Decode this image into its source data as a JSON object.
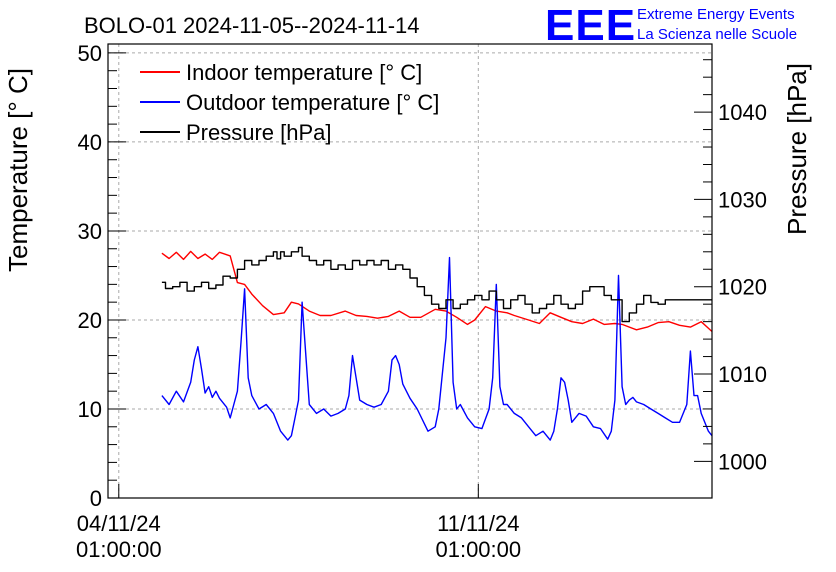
{
  "logo": {
    "text": "EEE",
    "line1": "Extreme Energy Events",
    "line2": "La Scienza nelle Scuole",
    "color": "#0000ff"
  },
  "chart_data": {
    "type": "line",
    "title": "BOLO-01 2024-11-05--2024-11-14",
    "ylabel": "Temperature [° C]",
    "y2label": "Pressure [hPa]",
    "ylim": [
      0,
      51
    ],
    "y2lim": [
      995.8,
      1047.8
    ],
    "yticks": [
      "0",
      "10",
      "20",
      "30",
      "40",
      "50"
    ],
    "y2ticks": [
      "1000",
      "1010",
      "1020",
      "1030",
      "1040"
    ],
    "xlim": [
      -0.3,
      16.5
    ],
    "xticks": [
      {
        "x": 0,
        "label1": "04/11/24",
        "label2": "01:00:00"
      },
      {
        "x": 10,
        "label1": "11/11/24",
        "label2": "01:00:00"
      }
    ],
    "grid": true,
    "legend_position": "top-left",
    "series": [
      {
        "name": "Indoor temperature [° C]",
        "axis": "left",
        "color": "#ff0000",
        "x": [
          1.2,
          1.4,
          1.6,
          1.8,
          2.0,
          2.2,
          2.4,
          2.6,
          2.8,
          3.1,
          3.3,
          3.5,
          3.7,
          4.0,
          4.3,
          4.6,
          4.8,
          5.0,
          5.3,
          5.6,
          5.9,
          6.3,
          6.6,
          6.9,
          7.2,
          7.5,
          7.8,
          8.1,
          8.4,
          8.8,
          9.1,
          9.4,
          9.7,
          9.9,
          10.2,
          10.5,
          10.8,
          11.0,
          11.4,
          11.7,
          12.0,
          12.3,
          12.6,
          12.9,
          13.2,
          13.5,
          13.8,
          14.0,
          14.4,
          14.7,
          15.0,
          15.3,
          15.6,
          15.9,
          16.2,
          16.5
        ],
        "y": [
          27.5,
          26.9,
          27.6,
          26.8,
          27.7,
          26.9,
          27.4,
          26.8,
          27.6,
          27.2,
          24.2,
          24.0,
          22.9,
          21.6,
          20.6,
          20.8,
          22.0,
          21.8,
          21.0,
          20.5,
          20.5,
          21.0,
          20.5,
          20.4,
          20.2,
          20.4,
          21.0,
          20.3,
          20.3,
          21.2,
          21.0,
          20.3,
          19.5,
          20.0,
          21.5,
          21.0,
          20.8,
          20.5,
          20.0,
          19.6,
          20.8,
          20.3,
          19.8,
          19.6,
          20.1,
          19.5,
          19.6,
          19.5,
          18.9,
          19.2,
          19.7,
          19.8,
          19.4,
          19.2,
          19.8,
          18.7
        ]
      },
      {
        "name": "Outdoor temperature [° C]",
        "axis": "left",
        "color": "#0000ff",
        "x": [
          1.2,
          1.4,
          1.6,
          1.8,
          2.0,
          2.1,
          2.2,
          2.3,
          2.4,
          2.5,
          2.6,
          2.7,
          2.8,
          3.0,
          3.1,
          3.2,
          3.3,
          3.4,
          3.5,
          3.6,
          3.7,
          3.9,
          4.1,
          4.3,
          4.5,
          4.7,
          4.8,
          4.9,
          5.0,
          5.1,
          5.3,
          5.5,
          5.7,
          5.9,
          6.1,
          6.3,
          6.4,
          6.5,
          6.6,
          6.7,
          6.9,
          7.1,
          7.3,
          7.5,
          7.6,
          7.7,
          7.8,
          7.9,
          8.1,
          8.3,
          8.6,
          8.8,
          8.9,
          9.1,
          9.2,
          9.3,
          9.4,
          9.5,
          9.7,
          9.9,
          10.1,
          10.3,
          10.4,
          10.5,
          10.6,
          10.7,
          10.8,
          11.0,
          11.2,
          11.4,
          11.6,
          11.8,
          12.0,
          12.1,
          12.2,
          12.3,
          12.4,
          12.5,
          12.6,
          12.8,
          13.0,
          13.2,
          13.4,
          13.6,
          13.7,
          13.8,
          13.9,
          14.0,
          14.1,
          14.2,
          14.3,
          14.4,
          14.6,
          14.8,
          15.0,
          15.2,
          15.4,
          15.6,
          15.8,
          15.9,
          16.0,
          16.1,
          16.2,
          16.4,
          16.5
        ],
        "y": [
          11.5,
          10.5,
          12.0,
          10.8,
          13.0,
          15.5,
          17.0,
          14.5,
          11.8,
          12.5,
          11.3,
          12.0,
          11.2,
          10.2,
          9.0,
          10.5,
          12.0,
          17.5,
          23.5,
          13.5,
          11.5,
          10.0,
          10.5,
          9.5,
          7.5,
          6.5,
          7.0,
          9.0,
          11.0,
          22.0,
          10.5,
          9.5,
          10.0,
          9.2,
          9.5,
          10.0,
          11.5,
          16.0,
          13.5,
          11.0,
          10.5,
          10.2,
          10.5,
          12.0,
          15.5,
          16.0,
          15.0,
          12.8,
          11.2,
          10.0,
          7.5,
          8.0,
          10.0,
          18.0,
          27.0,
          13.0,
          10.0,
          10.5,
          9.0,
          8.0,
          7.8,
          10.0,
          13.5,
          24.0,
          12.5,
          10.5,
          10.5,
          9.5,
          9.0,
          8.0,
          7.0,
          7.5,
          6.5,
          7.5,
          10.0,
          13.5,
          13.0,
          11.0,
          8.5,
          9.5,
          9.2,
          8.0,
          7.8,
          6.6,
          7.5,
          11.0,
          25.0,
          12.5,
          10.5,
          11.0,
          11.3,
          10.8,
          10.5,
          10.0,
          9.5,
          9.0,
          8.5,
          8.5,
          10.5,
          16.5,
          11.5,
          11.5,
          9.5,
          7.5,
          7.0
        ]
      },
      {
        "name": "Pressure [hPa]",
        "axis": "right",
        "color": "#000000",
        "x": [
          1.2,
          1.3,
          1.5,
          1.7,
          1.9,
          2.1,
          2.3,
          2.5,
          2.7,
          2.9,
          3.1,
          3.3,
          3.5,
          3.7,
          3.9,
          4.1,
          4.3,
          4.4,
          4.5,
          4.6,
          4.8,
          5.0,
          5.1,
          5.3,
          5.5,
          5.7,
          5.9,
          6.1,
          6.3,
          6.5,
          6.7,
          6.9,
          7.1,
          7.3,
          7.5,
          7.7,
          7.9,
          8.1,
          8.3,
          8.5,
          8.7,
          8.9,
          9.1,
          9.3,
          9.5,
          9.7,
          9.9,
          10.1,
          10.3,
          10.5,
          10.7,
          10.9,
          11.1,
          11.3,
          11.5,
          11.7,
          11.9,
          12.1,
          12.3,
          12.5,
          12.7,
          12.9,
          13.1,
          13.3,
          13.5,
          13.7,
          13.9,
          14.0,
          14.2,
          14.4,
          14.6,
          14.8,
          15.0,
          15.2,
          15.4,
          15.6,
          15.8,
          16.0,
          16.1,
          16.3,
          16.5
        ],
        "y": [
          1020.5,
          1019.8,
          1020.0,
          1020.5,
          1019.5,
          1020.0,
          1020.5,
          1019.8,
          1020.2,
          1021.2,
          1021.0,
          1022.0,
          1023.0,
          1022.5,
          1023.0,
          1023.5,
          1024.0,
          1023.2,
          1024.0,
          1023.5,
          1024.0,
          1024.5,
          1023.5,
          1023.0,
          1022.5,
          1023.0,
          1022.0,
          1022.5,
          1022.0,
          1023.0,
          1022.5,
          1023.0,
          1022.5,
          1023.0,
          1022.0,
          1022.5,
          1022.0,
          1021.0,
          1020.0,
          1019.0,
          1018.0,
          1017.5,
          1018.5,
          1017.5,
          1018.0,
          1018.5,
          1019.0,
          1018.5,
          1019.5,
          1018.5,
          1017.5,
          1018.5,
          1019.0,
          1018.0,
          1017.0,
          1017.5,
          1018.0,
          1019.0,
          1018.0,
          1017.5,
          1018.0,
          1019.5,
          1020.0,
          1020.0,
          1019.0,
          1018.5,
          1018.5,
          1016.0,
          1017.0,
          1018.0,
          1019.0,
          1018.2,
          1018.0,
          1018.5,
          1018.5,
          1018.5,
          1018.5,
          1018.5,
          1018.5,
          1018.5,
          1018.5
        ]
      }
    ]
  }
}
